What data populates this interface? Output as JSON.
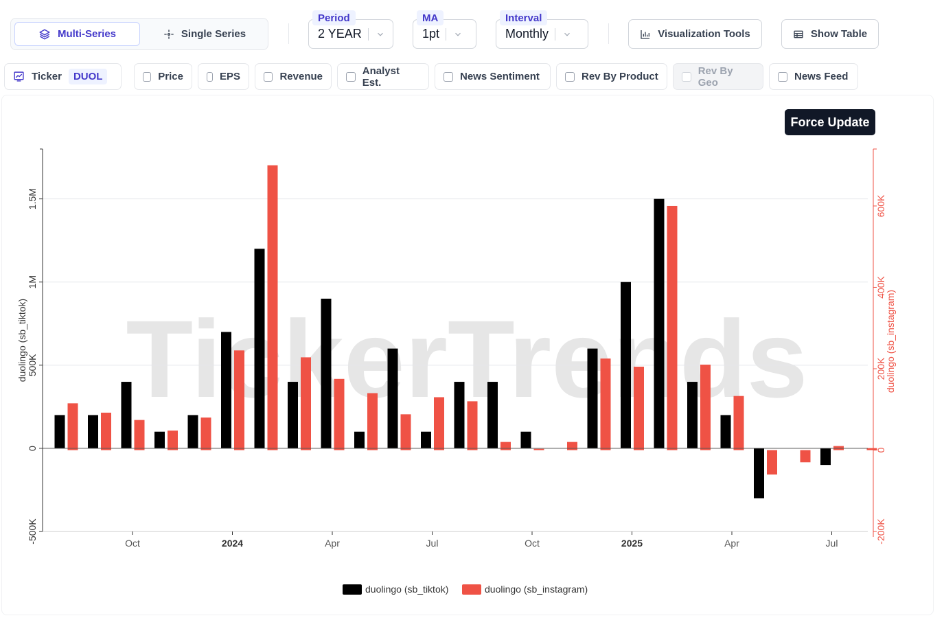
{
  "controls": {
    "view_modes": [
      {
        "label": "Multi-Series",
        "active": true,
        "icon": "layers-icon"
      },
      {
        "label": "Single Series",
        "active": false,
        "icon": "crosshair-icon"
      }
    ],
    "period": {
      "tag": "Period",
      "value": "2 YEAR"
    },
    "ma": {
      "tag": "MA",
      "value": "1pt"
    },
    "interval": {
      "tag": "Interval",
      "value": "Monthly"
    },
    "visualization_tools": "Visualization Tools",
    "show_table": "Show Table"
  },
  "toggles": {
    "ticker_label": "Ticker",
    "ticker_value": "DUOL",
    "items": [
      {
        "label": "Price",
        "checked": false,
        "disabled": false
      },
      {
        "label": "EPS",
        "checked": false,
        "disabled": false
      },
      {
        "label": "Revenue",
        "checked": false,
        "disabled": false
      },
      {
        "label": "Analyst Est.",
        "checked": false,
        "disabled": false
      },
      {
        "label": "News Sentiment",
        "checked": false,
        "disabled": false
      },
      {
        "label": "Rev By Product",
        "checked": false,
        "disabled": false
      },
      {
        "label": "Rev By Geo",
        "checked": false,
        "disabled": true
      },
      {
        "label": "News Feed",
        "checked": false,
        "disabled": false
      }
    ]
  },
  "force_update": "Force Update",
  "watermark": "TickerTrends",
  "colors": {
    "tiktok": "#000000",
    "instagram": "#ef5245",
    "grid": "#e5e7eb",
    "axis": "#333333"
  },
  "chart_data": {
    "type": "bar",
    "x": [
      "2023-08",
      "2023-09",
      "2023-10",
      "2023-11",
      "2023-12",
      "2024-01",
      "2024-02",
      "2024-03",
      "2024-04",
      "2024-05",
      "2024-06",
      "2024-07",
      "2024-08",
      "2024-09",
      "2024-10",
      "2024-11",
      "2024-12",
      "2025-01",
      "2025-02",
      "2025-03",
      "2025-04",
      "2025-05",
      "2025-06",
      "2025-07",
      "2025-08"
    ],
    "x_tick_labels": [
      {
        "x": "2023-10",
        "label": "Oct",
        "bold": false
      },
      {
        "x": "2024-01",
        "label": "2024",
        "bold": true
      },
      {
        "x": "2024-04",
        "label": "Apr",
        "bold": false
      },
      {
        "x": "2024-07",
        "label": "Jul",
        "bold": false
      },
      {
        "x": "2024-10",
        "label": "Oct",
        "bold": false
      },
      {
        "x": "2025-01",
        "label": "2025",
        "bold": true
      },
      {
        "x": "2025-04",
        "label": "Apr",
        "bold": false
      },
      {
        "x": "2025-07",
        "label": "Jul",
        "bold": false
      }
    ],
    "series": [
      {
        "name": "duolingo (sb_tiktok)",
        "axis": "left",
        "values": [
          200000,
          200000,
          400000,
          100000,
          200000,
          700000,
          1200000,
          400000,
          900000,
          100000,
          600000,
          100000,
          400000,
          400000,
          100000,
          0,
          600000,
          1000000,
          1500000,
          400000,
          200000,
          -300000,
          0,
          -100000,
          0
        ]
      },
      {
        "name": "duolingo (sb_instagram)",
        "axis": "right",
        "values": [
          115000,
          92000,
          74000,
          48000,
          80000,
          245000,
          700000,
          228000,
          175000,
          140000,
          88000,
          130000,
          120000,
          20000,
          3000,
          20000,
          225000,
          205000,
          600000,
          210000,
          133000,
          -60000,
          -30000,
          10000,
          5000
        ]
      }
    ],
    "yleft": {
      "label": "duolingo (sb_tiktok)",
      "lim": [
        -500000,
        1800000
      ],
      "ticks": [
        -500000,
        0,
        500000,
        1000000,
        1500000
      ],
      "tick_labels": [
        "-500K",
        "0",
        "500K",
        "1M",
        "1.5M"
      ]
    },
    "yright": {
      "label": "duolingo (sb_instagram)",
      "lim": [
        -200000,
        740000
      ],
      "ticks": [
        -200000,
        0,
        200000,
        400000,
        600000
      ],
      "tick_labels": [
        "-200K",
        "0",
        "200K",
        "400K",
        "600K"
      ]
    },
    "grid": true,
    "legend": "bottom-center"
  }
}
